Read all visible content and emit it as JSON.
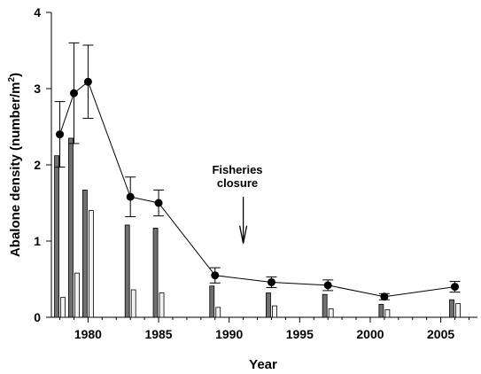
{
  "chart_data": {
    "type": "bar",
    "xlabel": "Year",
    "ylabel": "Abalone density (number/m",
    "ylabel_superscript": "2",
    "ylabel_suffix": ")",
    "xlim": [
      1977.4,
      2007.6
    ],
    "ylim": [
      0,
      4
    ],
    "x_ticks": [
      1980,
      1985,
      1990,
      1995,
      2000,
      2005
    ],
    "x_minor_step": 1,
    "y_ticks": [
      0,
      1,
      2,
      3,
      4
    ],
    "grid": false,
    "legend": "none",
    "bar_series": [
      {
        "color": "#707070",
        "points": [
          {
            "x": 1978,
            "y": 2.12
          },
          {
            "x": 1979,
            "y": 2.35
          },
          {
            "x": 1980,
            "y": 1.67
          },
          {
            "x": 1983,
            "y": 1.21
          },
          {
            "x": 1985,
            "y": 1.17
          },
          {
            "x": 1989,
            "y": 0.41
          },
          {
            "x": 1993,
            "y": 0.32
          },
          {
            "x": 1997,
            "y": 0.3
          },
          {
            "x": 2001,
            "y": 0.17
          },
          {
            "x": 2006,
            "y": 0.23
          }
        ]
      },
      {
        "color": "#f2f2f2",
        "points": [
          {
            "x": 1978,
            "y": 0.26
          },
          {
            "x": 1979,
            "y": 0.58
          },
          {
            "x": 1980,
            "y": 1.4
          },
          {
            "x": 1983,
            "y": 0.36
          },
          {
            "x": 1985,
            "y": 0.32
          },
          {
            "x": 1989,
            "y": 0.13
          },
          {
            "x": 1993,
            "y": 0.15
          },
          {
            "x": 1997,
            "y": 0.11
          },
          {
            "x": 2001,
            "y": 0.1
          },
          {
            "x": 2006,
            "y": 0.18
          }
        ]
      }
    ],
    "line_series": {
      "marker": "circle",
      "points": [
        {
          "x": 1978,
          "y": 2.4,
          "err": 0.43
        },
        {
          "x": 1979,
          "y": 2.94,
          "err": 0.66
        },
        {
          "x": 1980,
          "y": 3.09,
          "err": 0.48
        },
        {
          "x": 1983,
          "y": 1.58,
          "err": 0.26
        },
        {
          "x": 1985,
          "y": 1.5,
          "err": 0.17
        },
        {
          "x": 1989,
          "y": 0.55,
          "err": 0.1
        },
        {
          "x": 1993,
          "y": 0.46,
          "err": 0.07
        },
        {
          "x": 1997,
          "y": 0.42,
          "err": 0.07
        },
        {
          "x": 2001,
          "y": 0.27,
          "err": 0.04
        },
        {
          "x": 2006,
          "y": 0.4,
          "err": 0.07
        }
      ]
    },
    "annotation": {
      "lines": [
        "Fisheries",
        "closure"
      ],
      "arrow_x": 1991,
      "arrow_from_y": 1.58,
      "arrow_to_y": 0.97
    }
  }
}
